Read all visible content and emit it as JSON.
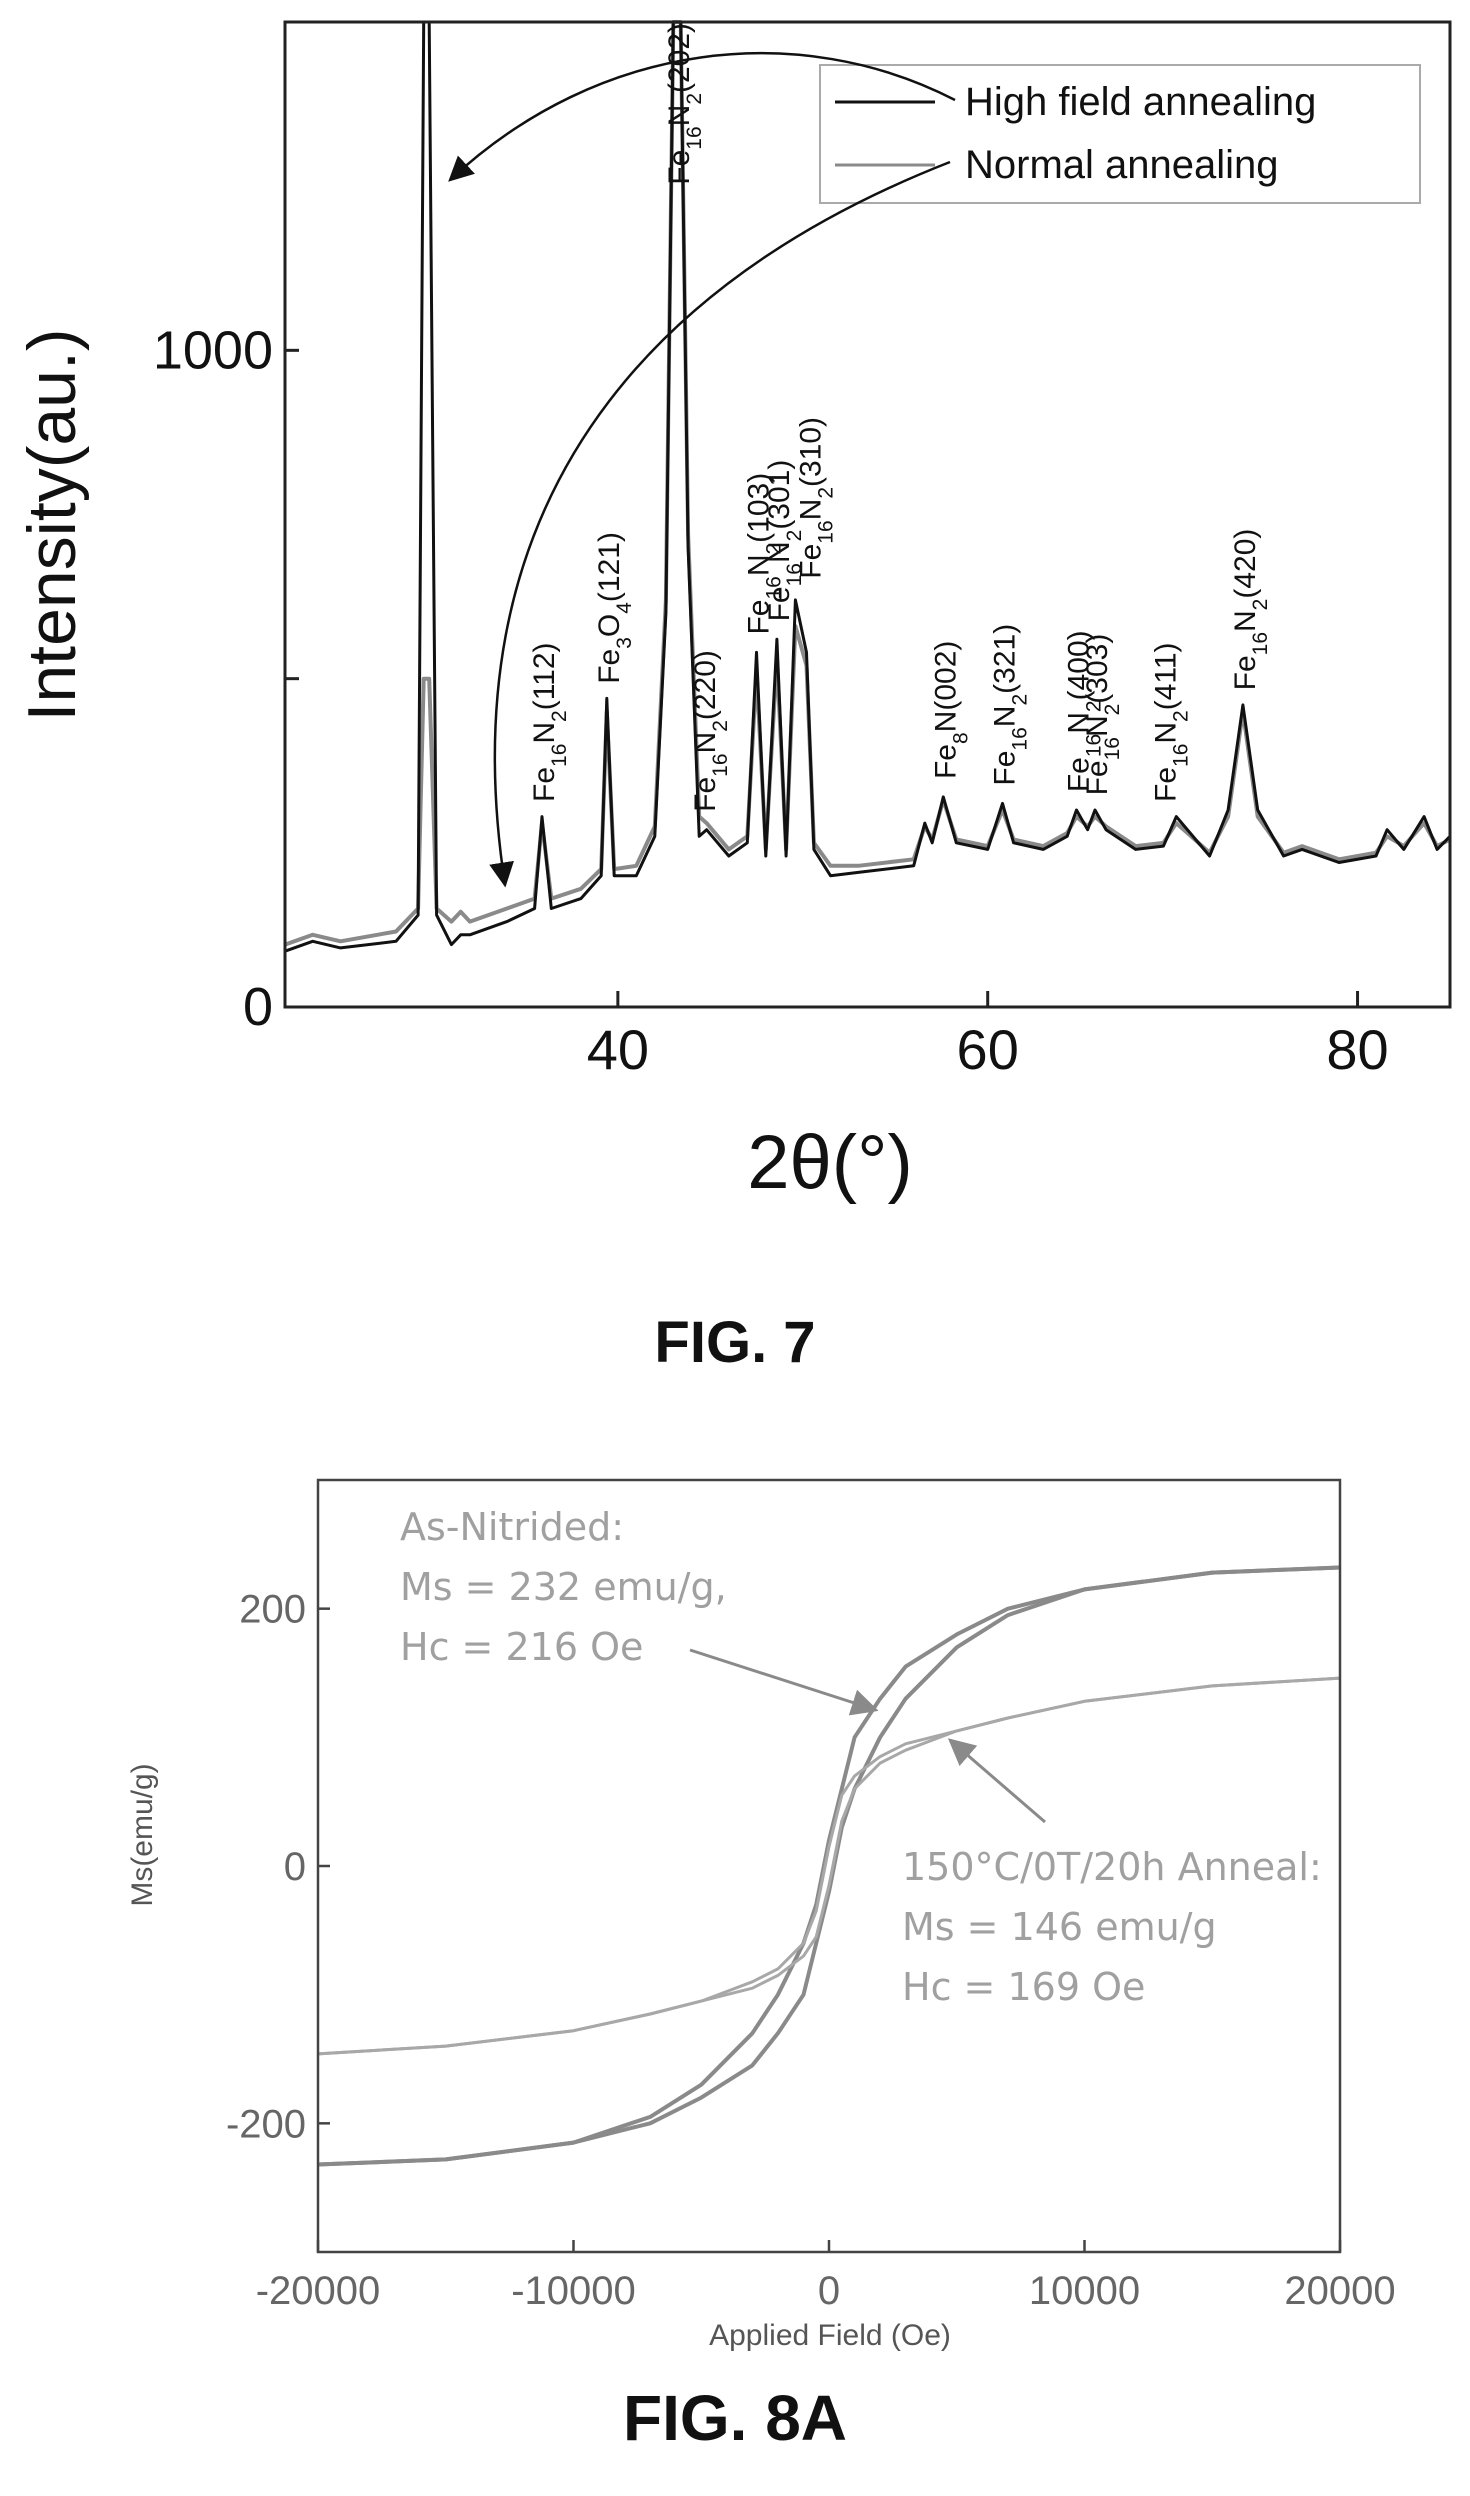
{
  "figures": {
    "fig7_caption": "FIG. 7",
    "fig8a_caption": "FIG. 8A"
  },
  "chart_data": [
    {
      "type": "line",
      "xlabel": "2θ(°)",
      "ylabel": "Intensity(au.)",
      "xlim": [
        22,
        85
      ],
      "ylim": [
        0,
        1500
      ],
      "x_ticks": [
        40,
        60,
        80
      ],
      "y_ticks": [
        0,
        1000
      ],
      "legend": {
        "placement": "top-right",
        "entries": [
          "High field annealing",
          "Normal annealing"
        ]
      },
      "series": [
        {
          "name": "High field annealing",
          "color": "#111111",
          "x": [
            22,
            23.5,
            25,
            28,
            29.2,
            29.5,
            29.8,
            30.2,
            31,
            31.5,
            32,
            34,
            35.5,
            35.9,
            36.4,
            38,
            39.1,
            39.4,
            39.8,
            41,
            42,
            42.6,
            43.0,
            43.4,
            43.8,
            44.4,
            44.8,
            46,
            47.0,
            47.5,
            48.0,
            48.6,
            49.1,
            49.6,
            50.2,
            50.6,
            51.5,
            53,
            56,
            56.6,
            57.0,
            57.6,
            58.3,
            60,
            60.8,
            61.4,
            63,
            64.3,
            64.8,
            65.4,
            65.8,
            66.4,
            68,
            69.5,
            70.2,
            72,
            73,
            73.8,
            74.6,
            76,
            77,
            79,
            81,
            81.6,
            82.5,
            83.6,
            84.3,
            85
          ],
          "y": [
            85,
            100,
            90,
            100,
            140,
            1500,
            1500,
            140,
            95,
            110,
            110,
            130,
            150,
            290,
            150,
            165,
            200,
            470,
            200,
            200,
            260,
            600,
            1500,
            1500,
            700,
            260,
            270,
            230,
            250,
            540,
            230,
            560,
            230,
            620,
            540,
            240,
            200,
            205,
            215,
            280,
            250,
            320,
            250,
            240,
            310,
            250,
            240,
            260,
            300,
            270,
            300,
            270,
            240,
            245,
            290,
            230,
            300,
            460,
            300,
            230,
            240,
            220,
            230,
            270,
            240,
            290,
            240,
            260
          ]
        },
        {
          "name": "Normal annealing",
          "color": "#8a8a8a",
          "x": [
            22,
            23.5,
            25,
            28,
            29.2,
            29.5,
            29.8,
            30.2,
            31,
            31.5,
            32,
            34,
            35.5,
            35.9,
            36.4,
            38,
            39.1,
            39.4,
            39.8,
            41,
            42,
            42.6,
            43.0,
            43.4,
            43.8,
            44.4,
            44.8,
            46,
            47.0,
            47.5,
            48.0,
            48.6,
            49.1,
            49.6,
            50.2,
            50.6,
            51.5,
            53,
            56,
            56.6,
            57.0,
            57.6,
            58.3,
            60,
            60.8,
            61.4,
            63,
            64.3,
            64.8,
            65.4,
            65.8,
            66.4,
            68,
            69.5,
            70.2,
            72,
            73,
            73.8,
            74.6,
            76,
            77,
            79,
            81,
            81.6,
            82.5,
            83.6,
            84.3,
            85
          ],
          "y": [
            95,
            110,
            100,
            115,
            150,
            500,
            500,
            150,
            130,
            145,
            130,
            150,
            165,
            280,
            165,
            180,
            210,
            450,
            210,
            215,
            275,
            620,
            1500,
            1500,
            720,
            290,
            280,
            240,
            260,
            510,
            240,
            530,
            240,
            580,
            520,
            250,
            215,
            215,
            225,
            275,
            255,
            315,
            255,
            245,
            300,
            255,
            245,
            265,
            290,
            275,
            290,
            275,
            245,
            250,
            280,
            235,
            290,
            450,
            290,
            235,
            245,
            225,
            235,
            260,
            245,
            280,
            245,
            255
          ]
        }
      ],
      "annotations": [
        {
          "base": "Fe",
          "sub1": "16",
          "mid": "N",
          "sub2": "2",
          "hkl": "(112)",
          "x": 35.9,
          "y": 300
        },
        {
          "base": "Fe",
          "sub1": "3",
          "mid": "O",
          "sub2": "4",
          "hkl": "(121)",
          "x": 39.4,
          "y": 480
        },
        {
          "base": "Fe",
          "sub1": "16",
          "mid": "N",
          "sub2": "2",
          "hkl": "(220)",
          "x": 44.6,
          "y": 285
        },
        {
          "base": "Fe",
          "sub1": "16",
          "mid": "N",
          "sub2": "2",
          "hkl": "(202)",
          "x": 43.2,
          "y": 1240
        },
        {
          "base": "Fe",
          "sub1": "16",
          "mid": "N",
          "sub2": "2",
          "hkl": "(103)",
          "x": 47.5,
          "y": 555
        },
        {
          "base": "Fe",
          "sub1": "16",
          "mid": "N",
          "sub2": "2",
          "hkl": "(301)",
          "x": 48.6,
          "y": 575
        },
        {
          "base": "Fe",
          "sub1": "16",
          "mid": "N",
          "sub2": "2",
          "hkl": "(310)",
          "x": 50.3,
          "y": 640
        },
        {
          "base": "Fe",
          "sub1": "8",
          "mid": "N",
          "sub2": "",
          "hkl": "(002)",
          "x": 57.6,
          "y": 335
        },
        {
          "base": "Fe",
          "sub1": "16",
          "mid": "N",
          "sub2": "2",
          "hkl": "(321)",
          "x": 60.8,
          "y": 325
        },
        {
          "base": "Fe",
          "sub1": "16",
          "mid": "N",
          "sub2": "2",
          "hkl": "(400)",
          "x": 64.8,
          "y": 315
        },
        {
          "base": "Fe",
          "sub1": "16",
          "mid": "N",
          "sub2": "2",
          "hkl": "(303)",
          "x": 65.8,
          "y": 310
        },
        {
          "base": "Fe",
          "sub1": "16",
          "mid": "N",
          "sub2": "2",
          "hkl": "(411)",
          "x": 69.5,
          "y": 300
        },
        {
          "base": "Fe",
          "sub1": "16",
          "mid": "N",
          "sub2": "2",
          "hkl": "(420)",
          "x": 73.8,
          "y": 470
        }
      ]
    },
    {
      "type": "line",
      "xlabel": "Applied Field (Oe)",
      "ylabel": "Ms(emu/g)",
      "xlim": [
        -20000,
        20000
      ],
      "ylim": [
        -300,
        300
      ],
      "x_ticks": [
        -20000,
        -10000,
        0,
        10000,
        20000
      ],
      "y_ticks": [
        -200,
        0,
        200
      ],
      "series": [
        {
          "color": "#8a8a8a",
          "x": [
            -20000,
            -15000,
            -10000,
            -7000,
            -5000,
            -3000,
            -2000,
            -1000,
            -500,
            0,
            500,
            1000,
            2000,
            3000,
            5000,
            7000,
            10000,
            15000,
            20000
          ],
          "y": [
            -232,
            -228,
            -215,
            -195,
            -170,
            -130,
            -100,
            -60,
            -30,
            20,
            60,
            100,
            130,
            155,
            180,
            200,
            215,
            228,
            232
          ]
        },
        {
          "color": "#8a8a8a",
          "x": [
            -20000,
            -15000,
            -10000,
            -7000,
            -5000,
            -3000,
            -2000,
            -1000,
            -500,
            0,
            500,
            1000,
            2000,
            3000,
            5000,
            7000,
            10000,
            15000,
            20000
          ],
          "y": [
            -232,
            -228,
            -215,
            -200,
            -180,
            -155,
            -130,
            -100,
            -60,
            -20,
            30,
            60,
            100,
            130,
            170,
            195,
            215,
            228,
            232
          ]
        },
        {
          "color": "#a8a8a8",
          "x": [
            -20000,
            -15000,
            -10000,
            -7000,
            -5000,
            -3000,
            -2000,
            -1000,
            -500,
            0,
            500,
            1000,
            2000,
            3000,
            5000,
            7000,
            10000,
            15000,
            20000
          ],
          "y": [
            -146,
            -140,
            -128,
            -115,
            -105,
            -90,
            -80,
            -60,
            -35,
            15,
            55,
            70,
            85,
            95,
            105,
            115,
            128,
            140,
            146
          ]
        },
        {
          "color": "#a8a8a8",
          "x": [
            -20000,
            -15000,
            -10000,
            -7000,
            -5000,
            -3000,
            -2000,
            -1000,
            -500,
            0,
            500,
            1000,
            2000,
            3000,
            5000,
            7000,
            10000,
            15000,
            20000
          ],
          "y": [
            -146,
            -140,
            -128,
            -115,
            -105,
            -95,
            -85,
            -70,
            -55,
            -15,
            35,
            60,
            80,
            90,
            105,
            115,
            128,
            140,
            146
          ]
        }
      ],
      "annotations": {
        "as_nitrided": [
          "As-Nitrided:",
          "Ms = 232 emu/g,",
          "Hc = 216 Oe"
        ],
        "anneal": [
          "150°C/0T/20h Anneal:",
          "Ms = 146 emu/g",
          "Hc = 169 Oe"
        ]
      }
    }
  ]
}
